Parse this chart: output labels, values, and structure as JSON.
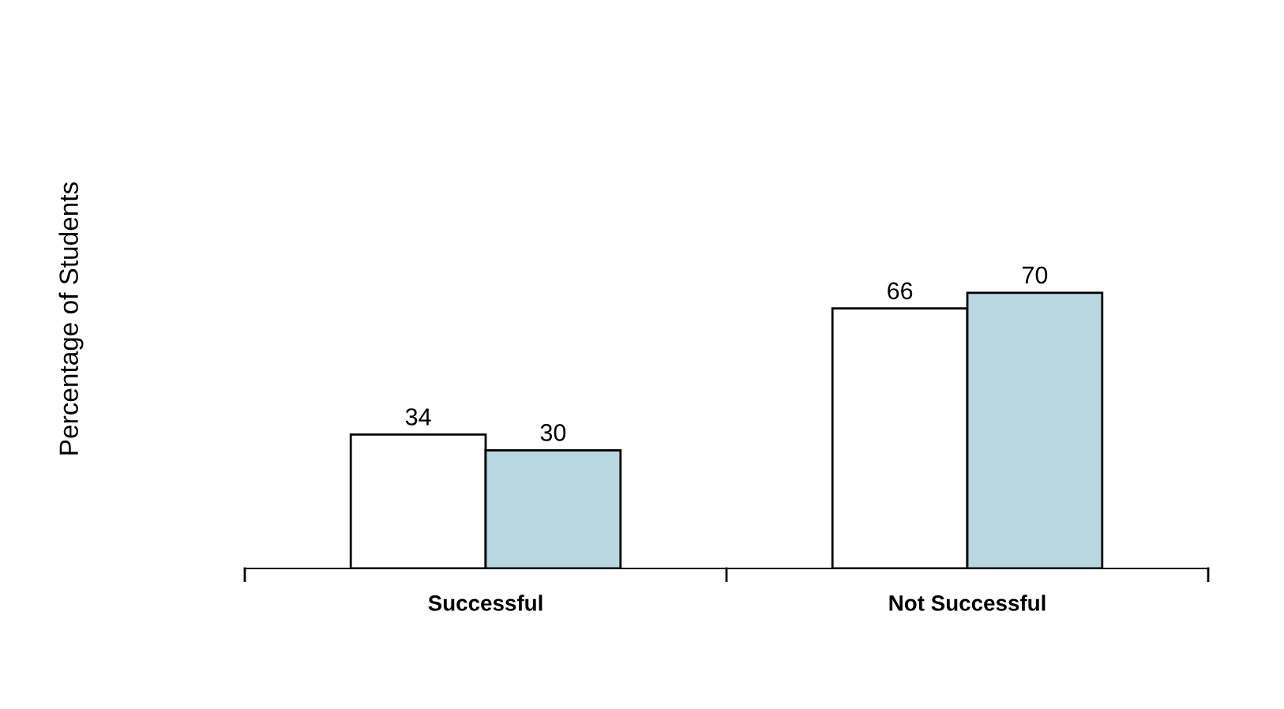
{
  "chart_data": {
    "type": "bar",
    "annotations": [
      "Percentage of Students"
    ],
    "categories": [
      "Successful",
      "Not Successful"
    ],
    "series": [
      {
        "color": "#ffffff",
        "values": [
          34,
          66
        ]
      },
      {
        "color": "#b8d7e0",
        "values": [
          30,
          70
        ]
      }
    ],
    "data_labels": true,
    "grid": false,
    "legend": false,
    "tick_labels": "x"
  }
}
